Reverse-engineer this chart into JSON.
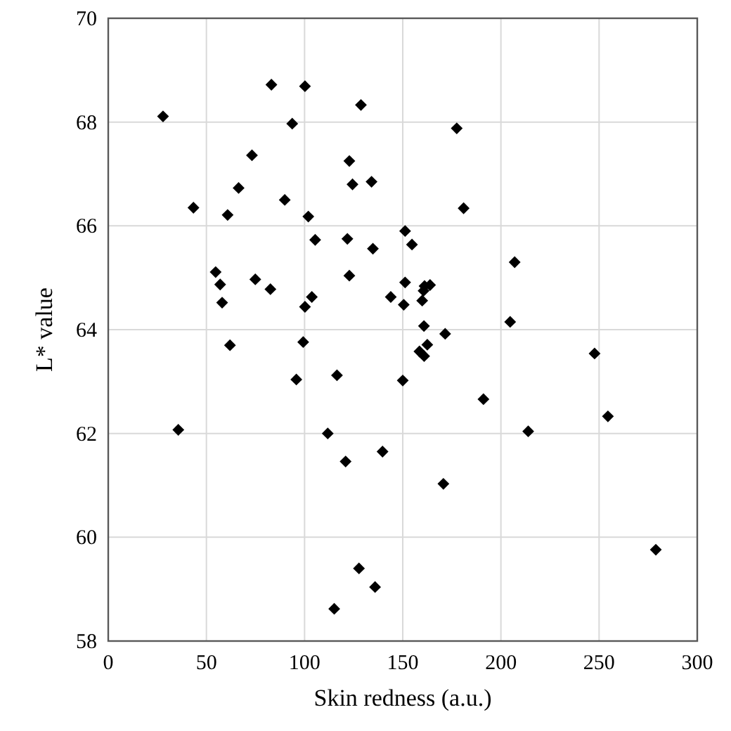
{
  "chart_data": {
    "type": "scatter",
    "xlabel": "Skin redness (a.u.)",
    "ylabel": "L* value",
    "xlim": [
      0,
      300
    ],
    "xticks": [
      0,
      50,
      100,
      150,
      200,
      250,
      300
    ],
    "ylim": [
      58,
      70
    ],
    "yticks": [
      58,
      60,
      62,
      64,
      66,
      68,
      70
    ],
    "grid": true,
    "marker": "diamond",
    "series": [
      {
        "color": "#000000",
        "x": [
          83.1,
          100.2,
          27.9,
          93.7,
          73.2,
          66.4,
          43.4,
          60.8,
          89.9,
          101.9,
          105.4,
          54.7,
          57.0,
          74.9,
          82.6,
          58.0,
          103.7,
          100.2,
          128.7,
          177.5,
          122.8,
          124.4,
          134.1,
          181.0,
          121.8,
          134.8,
          151.2,
          154.7,
          207.0,
          122.8,
          151.2,
          143.9,
          150.5,
          161.1,
          163.9,
          160.6,
          159.9,
          160.8,
          171.6,
          204.7,
          62.0,
          99.3,
          95.8,
          116.5,
          150.0,
          35.7,
          111.8,
          139.7,
          120.9,
          127.7,
          135.9,
          115.1,
          162.5,
          158.5,
          160.9,
          191.1,
          247.7,
          254.5,
          213.9,
          170.7,
          278.9
        ],
        "values": [
          68.72,
          68.69,
          68.11,
          67.97,
          67.36,
          66.73,
          66.35,
          66.21,
          66.5,
          66.18,
          65.73,
          65.11,
          64.87,
          64.97,
          64.78,
          64.52,
          64.63,
          64.44,
          68.33,
          67.88,
          67.25,
          66.8,
          66.85,
          66.34,
          65.75,
          65.56,
          65.9,
          65.64,
          65.3,
          65.04,
          64.91,
          64.63,
          64.48,
          64.84,
          64.86,
          64.75,
          64.56,
          64.07,
          63.92,
          64.15,
          63.7,
          63.76,
          63.04,
          63.12,
          63.02,
          62.07,
          62.0,
          61.65,
          61.46,
          59.4,
          59.04,
          58.62,
          63.71,
          63.58,
          63.49,
          62.66,
          63.54,
          62.33,
          62.04,
          61.03,
          59.76
        ]
      }
    ]
  }
}
